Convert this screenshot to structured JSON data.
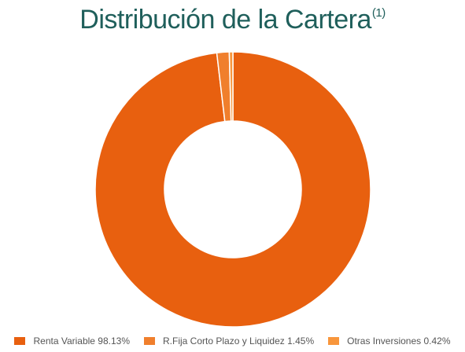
{
  "title": {
    "text": "Distribución de la Cartera",
    "superscript": "(1)"
  },
  "chart_data": {
    "type": "pie",
    "donut": true,
    "title": "Distribución de la Cartera",
    "categories": [
      "Renta Variable",
      "R.Fija Corto Plazo y Liquidez",
      "Otras Inversiones"
    ],
    "values": [
      98.13,
      1.45,
      0.42
    ],
    "colors": [
      "#e8600f",
      "#f07f2d",
      "#f8963c"
    ],
    "legend_position": "bottom",
    "legend_labels": [
      "Renta Variable 98.13%",
      "R.Fija Corto Plazo y Liquidez 1.45%",
      "Otras Inversiones 0.42%"
    ]
  }
}
